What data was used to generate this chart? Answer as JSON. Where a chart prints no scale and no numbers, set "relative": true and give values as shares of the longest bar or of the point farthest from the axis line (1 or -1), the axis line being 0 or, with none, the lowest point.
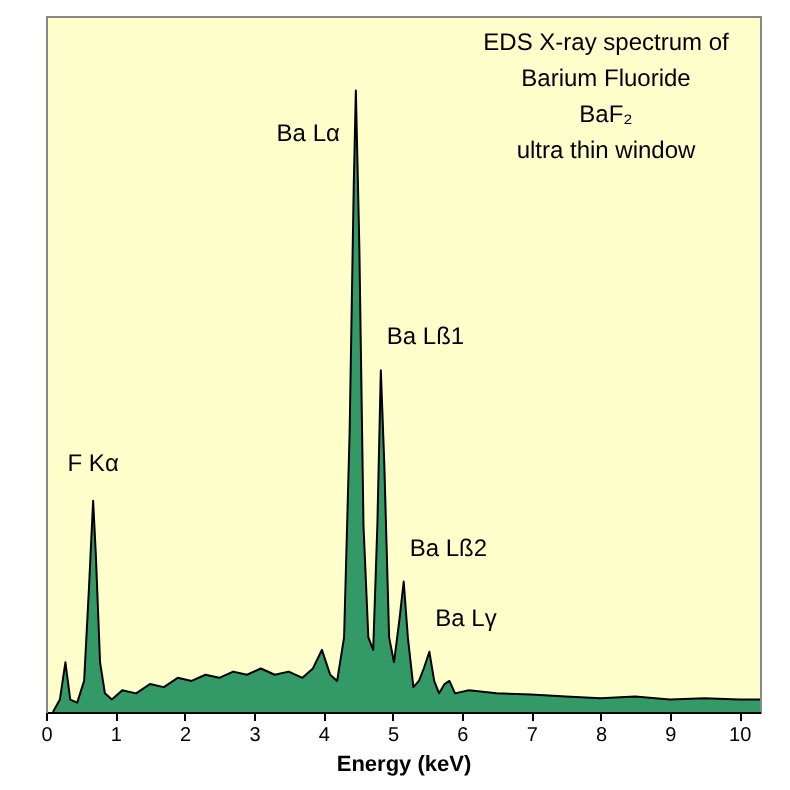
{
  "chart_data": {
    "type": "area",
    "relative": true,
    "xlabel": "Energy (keV)",
    "xlim": [
      0,
      10.3
    ],
    "xticks": [
      0,
      1,
      2,
      3,
      4,
      5,
      6,
      7,
      8,
      9,
      10
    ],
    "grid": false,
    "annotations": [
      "EDS X-ray spectrum of",
      "Barium Fluoride",
      "BaF₂",
      "ultra thin window",
      {
        "text": "F Kα",
        "x": 0.68,
        "y": 0.34
      },
      {
        "text": "Ba Lα",
        "x": 4.47,
        "y": 1.0
      },
      {
        "text": "Ba Lß1",
        "x": 4.83,
        "y": 0.55
      },
      {
        "text": "Ba Lß2",
        "x": 5.16,
        "y": 0.21
      },
      {
        "text": "Ba Lγ",
        "x": 5.53,
        "y": 0.097
      }
    ],
    "series": [
      {
        "color": "#339966",
        "x": [
          0.1,
          0.2,
          0.28,
          0.35,
          0.45,
          0.55,
          0.62,
          0.68,
          0.72,
          0.78,
          0.85,
          0.95,
          1.1,
          1.3,
          1.5,
          1.7,
          1.9,
          2.1,
          2.3,
          2.5,
          2.7,
          2.9,
          3.1,
          3.3,
          3.5,
          3.7,
          3.85,
          3.98,
          4.1,
          4.2,
          4.3,
          4.38,
          4.44,
          4.47,
          4.52,
          4.58,
          4.65,
          4.72,
          4.78,
          4.83,
          4.88,
          4.95,
          5.02,
          5.1,
          5.16,
          5.22,
          5.3,
          5.38,
          5.45,
          5.53,
          5.6,
          5.67,
          5.75,
          5.82,
          5.9,
          6.1,
          6.5,
          7,
          7.5,
          8,
          8.5,
          9,
          9.5,
          10,
          10.3
        ],
        "values": [
          0.0,
          0.02,
          0.08,
          0.02,
          0.015,
          0.05,
          0.2,
          0.34,
          0.25,
          0.08,
          0.03,
          0.02,
          0.035,
          0.03,
          0.045,
          0.04,
          0.055,
          0.05,
          0.06,
          0.055,
          0.065,
          0.06,
          0.07,
          0.06,
          0.065,
          0.055,
          0.07,
          0.1,
          0.06,
          0.05,
          0.12,
          0.45,
          0.85,
          1.0,
          0.75,
          0.3,
          0.12,
          0.1,
          0.3,
          0.55,
          0.4,
          0.12,
          0.08,
          0.15,
          0.21,
          0.12,
          0.04,
          0.05,
          0.07,
          0.097,
          0.05,
          0.03,
          0.045,
          0.05,
          0.03,
          0.035,
          0.03,
          0.028,
          0.025,
          0.022,
          0.025,
          0.02,
          0.022,
          0.02,
          0.02
        ]
      }
    ]
  }
}
